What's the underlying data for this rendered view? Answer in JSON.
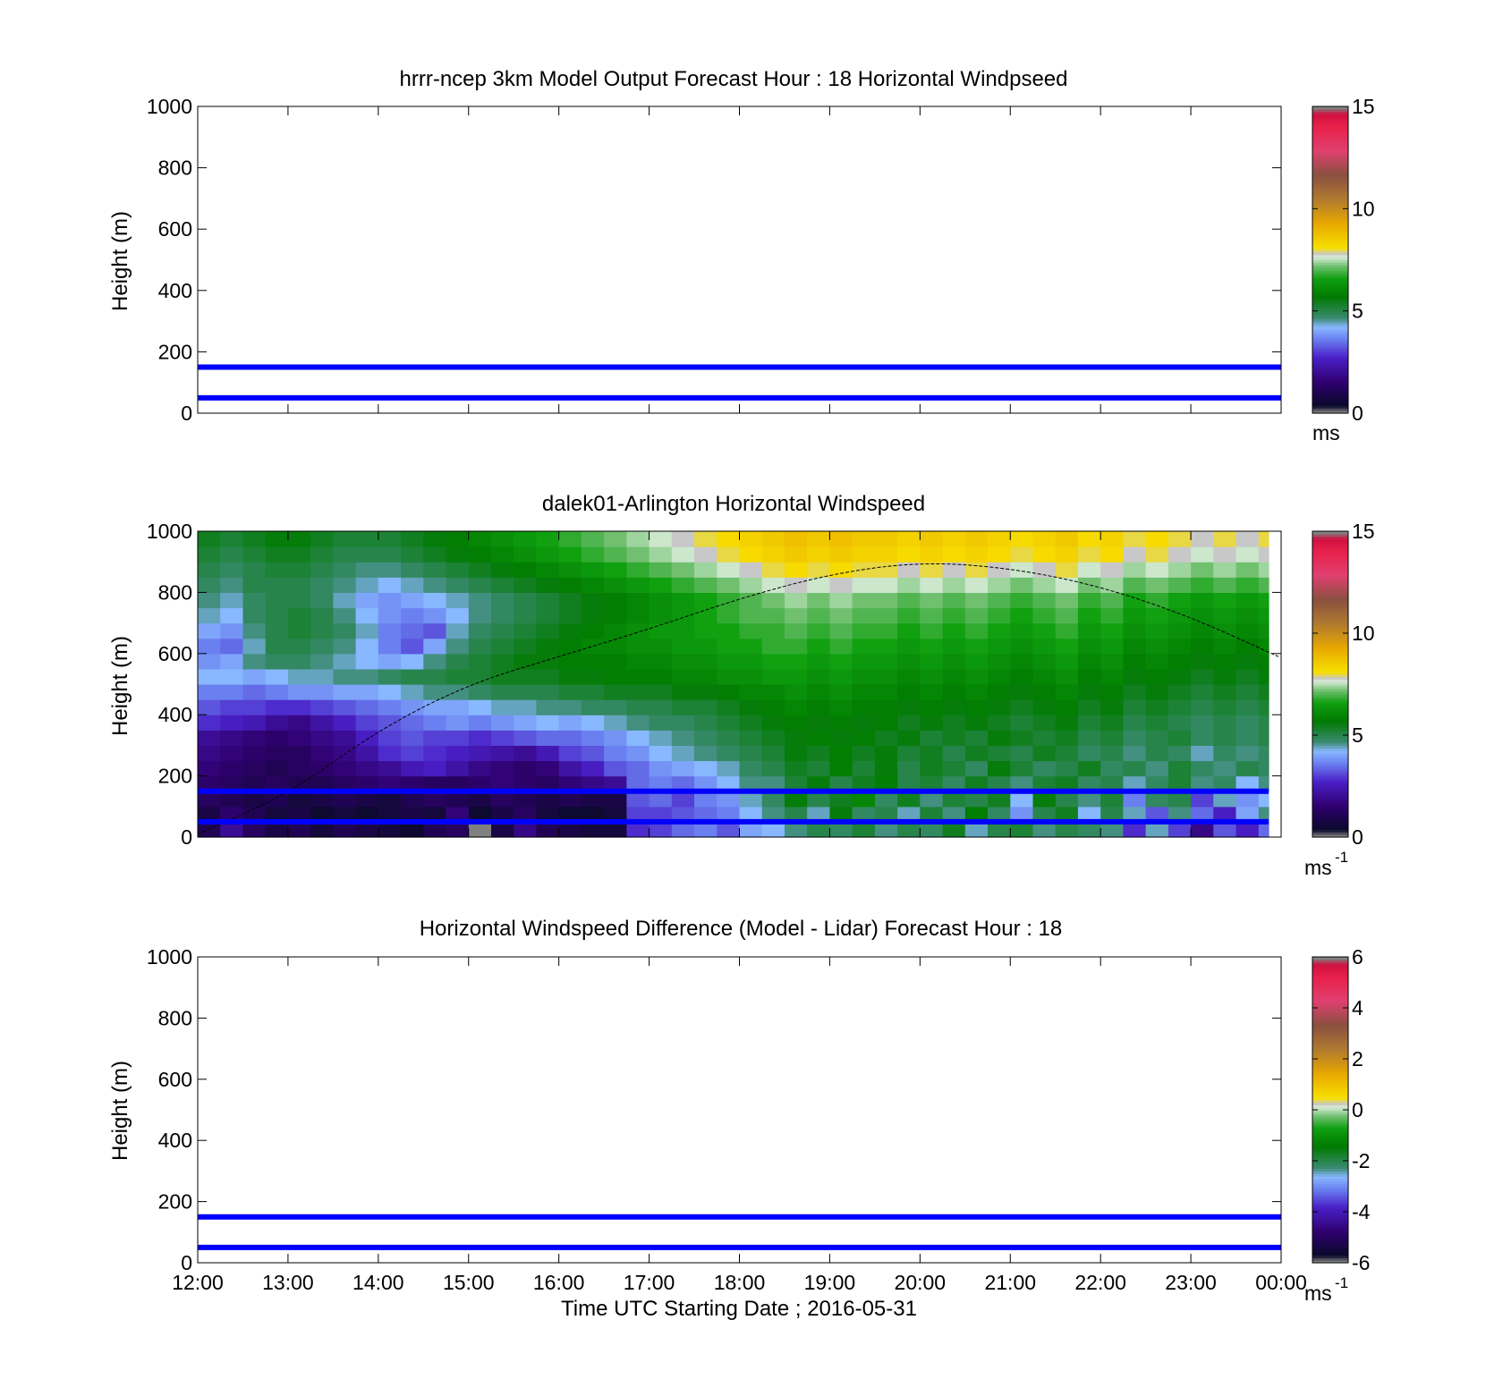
{
  "figure": {
    "xlabel": "Time UTC  Starting Date ; 2016-05-31"
  },
  "chart_data": [
    {
      "type": "heatmap",
      "title": "hrrr-ncep 3km Model Output   Forecast Hour : 18 Horizontal Windpseed",
      "ylabel": "Height (m)",
      "xlim": [
        "12:00",
        "00:00"
      ],
      "ylim": [
        0,
        1000
      ],
      "x_ticks": [
        "12:00",
        "13:00",
        "14:00",
        "15:00",
        "16:00",
        "17:00",
        "18:00",
        "19:00",
        "20:00",
        "21:00",
        "22:00",
        "23:00",
        "00:00"
      ],
      "y_ticks": [
        "0",
        "200",
        "400",
        "600",
        "800",
        "1000"
      ],
      "show_xtick_labels": false,
      "reference_lines_m": [
        50,
        150
      ],
      "reference_line_color": "#0000ff",
      "colorbar": {
        "min": 0,
        "max": 15,
        "ticks": [
          "0",
          "5",
          "10",
          "15"
        ],
        "unit": "ms",
        "unit_sup": ""
      },
      "cells": []
    },
    {
      "type": "heatmap",
      "title": "dalek01-Arlington  Horizontal Windspeed",
      "ylabel": "Height (m)",
      "xlim": [
        "12:00",
        "00:00"
      ],
      "ylim": [
        0,
        1000
      ],
      "x_ticks": [
        "12:00",
        "13:00",
        "14:00",
        "15:00",
        "16:00",
        "17:00",
        "18:00",
        "19:00",
        "20:00",
        "21:00",
        "22:00",
        "23:00",
        "00:00"
      ],
      "y_ticks": [
        "0",
        "200",
        "400",
        "600",
        "800",
        "1000"
      ],
      "show_xtick_labels": false,
      "reference_lines_m": [
        50,
        150
      ],
      "reference_line_color": "#0000ff",
      "colorbar": {
        "min": 0,
        "max": 15,
        "ticks": [
          "0",
          "5",
          "10",
          "15"
        ],
        "unit": "ms",
        "unit_sup": "-1"
      },
      "column_hours": [
        12.0,
        12.25,
        12.5,
        12.75,
        13.0,
        13.25,
        13.5,
        13.75,
        14.0,
        14.25,
        14.5,
        14.75,
        15.0,
        15.25,
        15.5,
        15.75,
        16.0,
        16.25,
        16.5,
        16.75,
        17.0,
        17.25,
        17.5,
        17.75,
        18.0,
        18.25,
        18.5,
        18.75,
        19.0,
        19.25,
        19.5,
        19.75,
        20.0,
        20.25,
        20.5,
        20.75,
        21.0,
        21.25,
        21.5,
        21.75,
        22.0,
        22.25,
        22.5,
        22.75,
        23.0,
        23.25,
        23.5,
        23.75
      ],
      "row_heights_m": [
        25,
        75,
        125,
        175,
        225,
        275,
        325,
        375,
        425,
        475,
        525,
        575,
        625,
        675,
        725,
        775,
        825,
        875,
        925,
        975
      ],
      "windspeed_grid_ms": [
        [
          1.0,
          2.0,
          1.2,
          0.8,
          1.0,
          0.6,
          1.0,
          0.8,
          0.6,
          0.4,
          1.0,
          1.2,
          0.0,
          0.8,
          1.8,
          1.0,
          0.8,
          0.6,
          0.6,
          2.8,
          3.0,
          3.4,
          3.6,
          3.2,
          4.0,
          4.2,
          4.6,
          5.0,
          4.8,
          5.2,
          4.6,
          5.0,
          4.8,
          5.4,
          4.4,
          5.0,
          5.2,
          4.6,
          5.0,
          4.8,
          4.6,
          2.8,
          4.4,
          3.0,
          1.8,
          3.2,
          2.6,
          3.4
        ],
        [
          0.8,
          1.4,
          1.0,
          0.6,
          0.8,
          0.4,
          0.6,
          0.4,
          0.6,
          0.8,
          0.6,
          1.6,
          0.4,
          0.8,
          1.2,
          0.6,
          0.4,
          0.4,
          0.6,
          3.0,
          3.0,
          3.2,
          3.4,
          3.6,
          4.2,
          4.6,
          5.0,
          4.4,
          5.6,
          4.8,
          5.0,
          4.4,
          5.2,
          4.6,
          5.8,
          4.8,
          3.8,
          5.0,
          5.4,
          4.2,
          5.0,
          4.4,
          3.2,
          4.6,
          3.4,
          2.6,
          4.0,
          4.6
        ],
        [
          1.2,
          1.0,
          0.8,
          1.0,
          0.6,
          0.8,
          1.0,
          0.8,
          0.6,
          1.0,
          1.2,
          1.0,
          0.8,
          1.2,
          1.0,
          0.8,
          1.0,
          0.8,
          0.8,
          3.2,
          3.4,
          3.0,
          3.6,
          3.8,
          4.4,
          4.8,
          5.6,
          5.0,
          5.4,
          6.0,
          4.8,
          5.4,
          4.6,
          5.2,
          5.0,
          5.4,
          4.2,
          5.6,
          5.0,
          4.6,
          5.2,
          3.6,
          4.8,
          5.0,
          3.0,
          4.4,
          3.8,
          4.2
        ],
        [
          1.4,
          1.2,
          1.0,
          1.2,
          1.0,
          1.0,
          1.2,
          1.4,
          1.6,
          1.4,
          1.2,
          1.2,
          1.4,
          1.6,
          1.4,
          1.2,
          1.6,
          1.8,
          2.0,
          3.4,
          3.6,
          3.4,
          3.8,
          4.2,
          4.6,
          4.6,
          5.2,
          5.6,
          5.0,
          5.4,
          5.8,
          5.0,
          5.2,
          4.8,
          5.4,
          5.0,
          4.6,
          5.2,
          5.4,
          4.8,
          5.0,
          4.4,
          4.8,
          5.2,
          4.6,
          4.8,
          4.2,
          4.6
        ],
        [
          1.6,
          1.4,
          1.2,
          1.0,
          1.2,
          1.4,
          1.6,
          1.8,
          2.0,
          2.4,
          2.6,
          2.2,
          1.8,
          1.6,
          1.4,
          1.6,
          2.2,
          2.6,
          3.2,
          3.4,
          3.8,
          4.0,
          4.2,
          4.4,
          4.8,
          5.0,
          5.4,
          5.2,
          5.8,
          5.2,
          5.6,
          5.0,
          5.4,
          5.2,
          4.8,
          5.6,
          5.2,
          4.8,
          5.0,
          5.4,
          4.8,
          5.0,
          4.6,
          5.2,
          4.8,
          4.6,
          5.0,
          4.8
        ],
        [
          1.8,
          1.6,
          1.4,
          1.2,
          1.2,
          1.6,
          1.8,
          2.2,
          2.8,
          3.0,
          2.8,
          2.6,
          2.4,
          2.2,
          2.0,
          2.4,
          3.0,
          3.2,
          3.6,
          3.8,
          4.2,
          4.4,
          4.6,
          4.8,
          5.0,
          5.2,
          5.6,
          5.4,
          5.8,
          5.4,
          5.6,
          5.2,
          5.4,
          5.0,
          5.4,
          5.2,
          5.0,
          5.4,
          5.2,
          4.8,
          5.0,
          4.6,
          5.0,
          4.8,
          4.4,
          4.8,
          4.6,
          4.8
        ],
        [
          2.0,
          1.8,
          1.6,
          1.4,
          1.6,
          1.8,
          2.0,
          2.6,
          3.0,
          3.2,
          3.0,
          3.0,
          2.8,
          3.0,
          3.2,
          3.4,
          3.4,
          3.6,
          3.8,
          4.2,
          4.4,
          4.6,
          4.8,
          5.0,
          5.2,
          5.4,
          5.6,
          5.8,
          5.6,
          5.8,
          5.4,
          5.6,
          5.2,
          5.4,
          5.2,
          5.6,
          5.4,
          5.2,
          5.4,
          5.0,
          5.2,
          4.8,
          5.0,
          5.2,
          4.8,
          5.0,
          4.8,
          5.0
        ],
        [
          2.8,
          2.6,
          2.4,
          2.0,
          1.8,
          2.2,
          2.6,
          3.0,
          3.2,
          3.4,
          3.6,
          3.8,
          3.6,
          3.8,
          4.0,
          4.2,
          4.0,
          4.2,
          4.4,
          4.6,
          4.8,
          4.8,
          5.0,
          5.2,
          5.4,
          5.6,
          5.8,
          5.6,
          5.8,
          5.6,
          5.8,
          5.4,
          5.6,
          5.4,
          5.6,
          5.4,
          5.2,
          5.4,
          5.6,
          5.2,
          5.4,
          5.0,
          5.2,
          5.0,
          4.8,
          5.0,
          4.8,
          5.0
        ],
        [
          3.2,
          3.0,
          3.0,
          2.8,
          2.8,
          3.0,
          3.2,
          3.4,
          3.6,
          3.8,
          4.0,
          4.0,
          4.2,
          4.4,
          4.4,
          4.6,
          4.6,
          4.8,
          4.8,
          5.0,
          5.0,
          5.2,
          5.2,
          5.4,
          5.6,
          5.8,
          6.0,
          5.8,
          6.0,
          5.8,
          5.8,
          5.6,
          5.8,
          5.6,
          5.8,
          5.6,
          5.4,
          5.6,
          5.8,
          5.4,
          5.6,
          5.2,
          5.4,
          5.2,
          5.0,
          5.2,
          5.0,
          5.2
        ],
        [
          3.6,
          3.6,
          3.4,
          3.6,
          3.8,
          3.8,
          4.0,
          4.0,
          4.2,
          4.4,
          4.6,
          4.6,
          4.8,
          5.0,
          5.0,
          5.0,
          5.2,
          5.2,
          5.4,
          5.4,
          5.4,
          5.6,
          5.6,
          5.8,
          6.0,
          6.0,
          6.2,
          6.0,
          6.2,
          6.0,
          6.0,
          5.8,
          6.0,
          5.8,
          6.0,
          5.8,
          5.6,
          5.8,
          6.0,
          5.6,
          5.8,
          5.4,
          5.6,
          5.4,
          5.2,
          5.4,
          5.2,
          5.4
        ],
        [
          4.2,
          4.2,
          4.0,
          4.2,
          4.4,
          4.4,
          4.6,
          4.6,
          4.8,
          5.0,
          5.0,
          5.2,
          5.2,
          5.4,
          5.4,
          5.4,
          5.6,
          5.6,
          5.8,
          5.8,
          5.8,
          6.0,
          6.0,
          6.2,
          6.2,
          6.4,
          6.4,
          6.2,
          6.4,
          6.2,
          6.2,
          6.0,
          6.2,
          6.0,
          6.2,
          6.0,
          5.8,
          6.0,
          6.2,
          5.8,
          6.0,
          5.6,
          5.8,
          5.6,
          5.4,
          5.6,
          5.4,
          5.6
        ],
        [
          3.8,
          4.0,
          4.6,
          4.8,
          4.8,
          4.6,
          4.4,
          4.2,
          4.0,
          4.2,
          4.6,
          5.0,
          5.2,
          5.4,
          5.6,
          5.6,
          5.8,
          5.8,
          5.8,
          6.0,
          6.0,
          6.2,
          6.2,
          6.4,
          6.4,
          6.6,
          6.6,
          6.4,
          6.6,
          6.4,
          6.4,
          6.2,
          6.4,
          6.2,
          6.4,
          6.2,
          6.0,
          6.2,
          6.4,
          6.0,
          6.2,
          5.8,
          6.0,
          5.8,
          5.6,
          5.8,
          5.6,
          5.8
        ],
        [
          3.6,
          3.4,
          4.4,
          5.0,
          5.0,
          4.8,
          4.6,
          4.2,
          3.6,
          3.2,
          4.0,
          4.6,
          5.0,
          5.2,
          5.4,
          5.6,
          5.8,
          6.0,
          6.0,
          6.2,
          6.2,
          6.4,
          6.4,
          6.6,
          6.6,
          6.8,
          6.8,
          6.6,
          6.8,
          6.6,
          6.6,
          6.4,
          6.6,
          6.4,
          6.6,
          6.4,
          6.2,
          6.4,
          6.6,
          6.2,
          6.4,
          6.0,
          6.2,
          6.0,
          5.8,
          6.0,
          5.8,
          6.0
        ],
        [
          4.0,
          3.8,
          4.6,
          5.0,
          5.2,
          5.0,
          4.8,
          4.4,
          3.6,
          3.4,
          3.2,
          4.4,
          4.8,
          5.0,
          5.2,
          5.4,
          5.6,
          5.8,
          6.0,
          6.2,
          6.4,
          6.4,
          6.6,
          6.6,
          6.8,
          6.8,
          7.0,
          6.8,
          7.0,
          6.8,
          6.8,
          6.6,
          6.8,
          6.6,
          6.8,
          6.6,
          6.4,
          6.6,
          6.8,
          6.4,
          6.6,
          6.2,
          6.4,
          6.2,
          6.0,
          6.2,
          6.0,
          6.2
        ],
        [
          4.4,
          4.2,
          4.8,
          5.0,
          5.2,
          5.0,
          4.6,
          4.2,
          3.8,
          3.6,
          3.8,
          4.2,
          4.6,
          4.8,
          5.0,
          5.2,
          5.4,
          5.6,
          5.8,
          6.0,
          6.2,
          6.4,
          6.6,
          6.8,
          7.0,
          7.0,
          7.2,
          7.0,
          7.2,
          7.0,
          7.0,
          6.8,
          7.0,
          6.8,
          7.0,
          6.8,
          6.6,
          6.8,
          7.0,
          6.6,
          6.8,
          6.4,
          6.6,
          6.4,
          6.2,
          6.4,
          6.2,
          6.4
        ],
        [
          4.6,
          4.4,
          4.8,
          5.0,
          5.0,
          4.8,
          4.4,
          4.0,
          3.8,
          4.0,
          4.2,
          4.4,
          4.6,
          4.8,
          5.0,
          5.2,
          5.4,
          5.6,
          5.8,
          6.0,
          6.2,
          6.4,
          6.6,
          6.8,
          7.0,
          7.2,
          7.4,
          7.2,
          7.4,
          7.2,
          7.2,
          7.0,
          7.2,
          7.0,
          7.2,
          7.0,
          6.8,
          7.0,
          7.2,
          6.8,
          7.0,
          6.6,
          6.8,
          6.6,
          6.4,
          6.6,
          6.4,
          6.6
        ],
        [
          4.8,
          4.6,
          5.0,
          5.0,
          5.0,
          4.8,
          4.6,
          4.4,
          4.2,
          4.4,
          4.6,
          4.8,
          5.0,
          5.2,
          5.4,
          5.6,
          5.8,
          6.0,
          6.2,
          6.4,
          6.6,
          6.8,
          7.0,
          7.2,
          7.4,
          7.6,
          7.8,
          7.6,
          7.8,
          7.6,
          7.6,
          7.4,
          7.6,
          7.4,
          7.6,
          7.4,
          7.2,
          7.4,
          7.6,
          7.2,
          7.4,
          7.0,
          7.2,
          7.0,
          6.8,
          7.0,
          6.8,
          7.0
        ],
        [
          5.0,
          4.8,
          5.0,
          5.2,
          5.2,
          5.0,
          4.8,
          4.6,
          4.6,
          4.8,
          5.0,
          5.2,
          5.4,
          5.6,
          5.8,
          6.0,
          6.2,
          6.4,
          6.6,
          6.8,
          7.0,
          7.2,
          7.4,
          7.6,
          7.8,
          8.0,
          8.2,
          8.0,
          8.2,
          8.0,
          8.0,
          7.8,
          8.0,
          7.8,
          8.0,
          7.8,
          7.6,
          7.8,
          8.0,
          7.6,
          7.8,
          7.4,
          7.6,
          7.4,
          7.2,
          7.4,
          7.2,
          7.4
        ],
        [
          5.2,
          5.0,
          5.2,
          5.4,
          5.4,
          5.2,
          5.0,
          5.0,
          5.0,
          5.2,
          5.4,
          5.6,
          5.8,
          6.0,
          6.2,
          6.4,
          6.6,
          6.8,
          7.0,
          7.2,
          7.4,
          7.6,
          7.8,
          8.0,
          8.2,
          8.4,
          8.6,
          8.4,
          8.6,
          8.4,
          8.4,
          8.2,
          8.4,
          8.2,
          8.4,
          8.2,
          8.0,
          8.2,
          8.4,
          8.0,
          8.2,
          7.8,
          8.0,
          7.8,
          7.6,
          7.8,
          7.6,
          7.8
        ],
        [
          5.4,
          5.2,
          5.4,
          5.6,
          5.6,
          5.4,
          5.2,
          5.2,
          5.2,
          5.4,
          5.6,
          5.8,
          6.0,
          6.2,
          6.4,
          6.6,
          6.8,
          7.0,
          7.2,
          7.4,
          7.6,
          7.8,
          8.0,
          8.2,
          8.4,
          8.6,
          8.8,
          8.6,
          8.8,
          8.6,
          8.6,
          8.4,
          8.6,
          8.4,
          8.6,
          8.4,
          8.2,
          8.4,
          8.6,
          8.2,
          8.4,
          8.0,
          8.2,
          8.0,
          7.8,
          8.0,
          7.8,
          8.0
        ]
      ],
      "boundary_layer_curve": {
        "x_hours": [
          12.0,
          13.0,
          14.0,
          15.0,
          16.0,
          17.0,
          18.0,
          19.0,
          20.0,
          21.0,
          22.0,
          23.0,
          23.97
        ],
        "heights_m": [
          10,
          140,
          350,
          500,
          590,
          680,
          780,
          860,
          900,
          880,
          820,
          720,
          590
        ]
      }
    },
    {
      "type": "heatmap",
      "title": "Horizontal Windspeed Difference (Model - Lidar) Forecast Hour : 18",
      "ylabel": "Height (m)",
      "xlim": [
        "12:00",
        "00:00"
      ],
      "ylim": [
        0,
        1000
      ],
      "x_ticks": [
        "12:00",
        "13:00",
        "14:00",
        "15:00",
        "16:00",
        "17:00",
        "18:00",
        "19:00",
        "20:00",
        "21:00",
        "22:00",
        "23:00",
        "00:00"
      ],
      "y_ticks": [
        "0",
        "200",
        "400",
        "600",
        "800",
        "1000"
      ],
      "show_xtick_labels": true,
      "reference_lines_m": [
        50,
        150
      ],
      "reference_line_color": "#0000ff",
      "colorbar": {
        "min": -6,
        "max": 6,
        "ticks": [
          "-6",
          "-4",
          "-2",
          "0",
          "2",
          "4",
          "6"
        ],
        "unit": "ms",
        "unit_sup": "-1"
      },
      "cells": []
    }
  ]
}
